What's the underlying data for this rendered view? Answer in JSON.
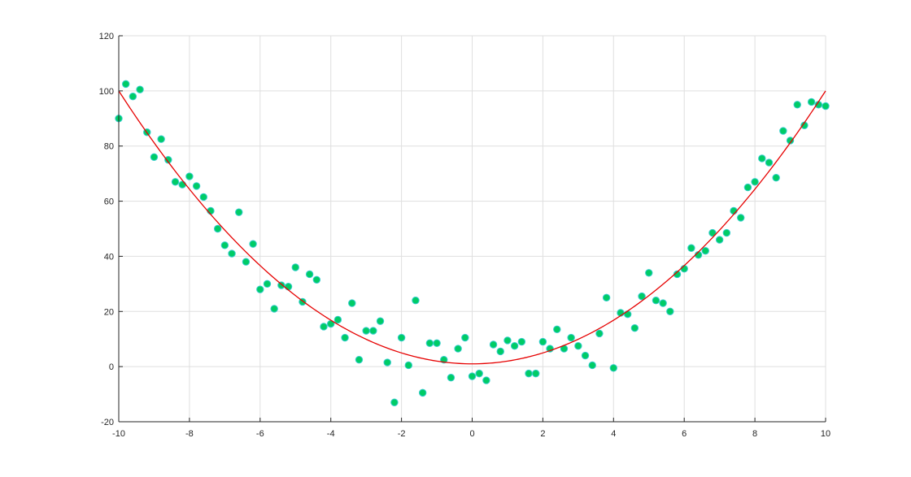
{
  "chart_data": {
    "type": "scatter",
    "title": "",
    "xlabel": "",
    "ylabel": "",
    "xlim": [
      -10,
      10
    ],
    "ylim": [
      -20,
      120
    ],
    "grid": true,
    "x_ticks": [
      -10,
      -8,
      -6,
      -4,
      -2,
      0,
      2,
      4,
      6,
      8,
      10
    ],
    "y_ticks": [
      -20,
      0,
      20,
      40,
      60,
      80,
      100,
      120
    ],
    "x_tick_labels": [
      "-10",
      "-8",
      "-6",
      "-4",
      "-2",
      "0",
      "2",
      "4",
      "6",
      "8",
      "10"
    ],
    "y_tick_labels": [
      "-20",
      "0",
      "20",
      "40",
      "60",
      "80",
      "100",
      "120"
    ],
    "series": [
      {
        "kind": "scatter",
        "marker_fill": "#00cc66",
        "marker_edge": "#33cccc",
        "x": [
          -10.0,
          -9.8,
          -9.6,
          -9.4,
          -9.2,
          -9.0,
          -8.8,
          -8.6,
          -8.4,
          -8.2,
          -8.0,
          -7.8,
          -7.6,
          -7.4,
          -7.2,
          -7.0,
          -6.8,
          -6.6,
          -6.4,
          -6.2,
          -6.0,
          -5.8,
          -5.6,
          -5.4,
          -5.2,
          -5.0,
          -4.8,
          -4.6,
          -4.4,
          -4.2,
          -4.0,
          -3.8,
          -3.6,
          -3.4,
          -3.2,
          -3.0,
          -2.8,
          -2.6,
          -2.4,
          -2.2,
          -2.0,
          -1.8,
          -1.6,
          -1.4,
          -1.2,
          -1.0,
          -0.8,
          -0.6,
          -0.4,
          -0.2,
          0.0,
          0.2,
          0.4,
          0.6,
          0.8,
          1.0,
          1.2,
          1.4,
          1.6,
          1.8,
          2.0,
          2.2,
          2.4,
          2.6,
          2.8,
          3.0,
          3.2,
          3.4,
          3.6,
          3.8,
          4.0,
          4.2,
          4.4,
          4.6,
          4.8,
          5.0,
          5.2,
          5.4,
          5.6,
          5.8,
          6.0,
          6.2,
          6.4,
          6.6,
          6.8,
          7.0,
          7.2,
          7.4,
          7.6,
          7.8,
          8.0,
          8.2,
          8.4,
          8.6,
          8.8,
          9.0,
          9.2,
          9.4,
          9.6,
          9.8,
          10.0
        ],
        "y": [
          90,
          102.5,
          98,
          100.5,
          85,
          76,
          82.5,
          75,
          67,
          66,
          69,
          65.5,
          61.5,
          56.5,
          50,
          44,
          41,
          56,
          38,
          44.5,
          28,
          30,
          21,
          29.5,
          29,
          36,
          23.5,
          33.5,
          31.5,
          14.5,
          15.5,
          17,
          10.5,
          23,
          2.5,
          13,
          13,
          16.5,
          1.5,
          -13,
          10.5,
          0.5,
          24,
          -9.5,
          8.5,
          8.5,
          2.5,
          -4,
          6.5,
          10.5,
          -3.5,
          -2.5,
          -5,
          8,
          5.5,
          9.5,
          7.5,
          9,
          -2.5,
          -2.5,
          9,
          6.5,
          13.5,
          6.5,
          10.5,
          7.5,
          4,
          0.5,
          12,
          25,
          -0.5,
          19.5,
          19,
          14,
          25.5,
          34,
          24,
          23,
          20,
          33.5,
          35.5,
          43,
          40.5,
          42,
          48.5,
          46,
          48.5,
          56.5,
          54,
          65,
          67,
          75.5,
          74,
          68.5,
          85.5,
          82,
          95,
          87.5,
          96,
          95,
          94.5
        ]
      },
      {
        "kind": "line",
        "color": "#e60000",
        "fit": "quadratic",
        "coefficients": {
          "a": 0.99,
          "b": 0.0,
          "c": 1.0
        }
      }
    ]
  }
}
